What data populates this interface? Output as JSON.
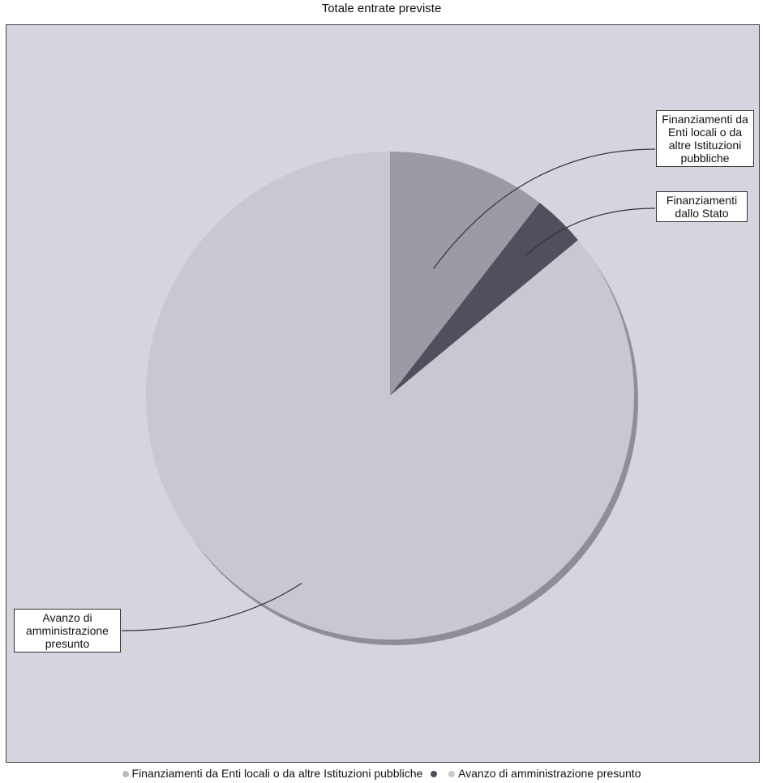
{
  "chart_data": {
    "type": "pie",
    "title": "Totale entrate previste",
    "categories": [
      "Finanziamenti da Enti locali o da altre Istituzioni pubbliche",
      "Finanziamenti dallo Stato",
      "Avanzo di amministrazione presunto"
    ],
    "values": [
      10.5,
      3.5,
      86.0
    ],
    "colors": [
      "#9b9ba6",
      "#4f4f5d",
      "#c8c8d3"
    ],
    "slice_labels": [
      "Finanziamenti da Enti locali o da altre Istituzioni pubbliche",
      "Finanziamenti dallo Stato",
      "Avanzo di amministrazione presunto"
    ],
    "legend": [
      "Finanziamenti da Enti locali o da altre Istituzioni pubbliche",
      "",
      "Avanzo di amministrazione presunto"
    ],
    "legend_position": "bottom"
  }
}
